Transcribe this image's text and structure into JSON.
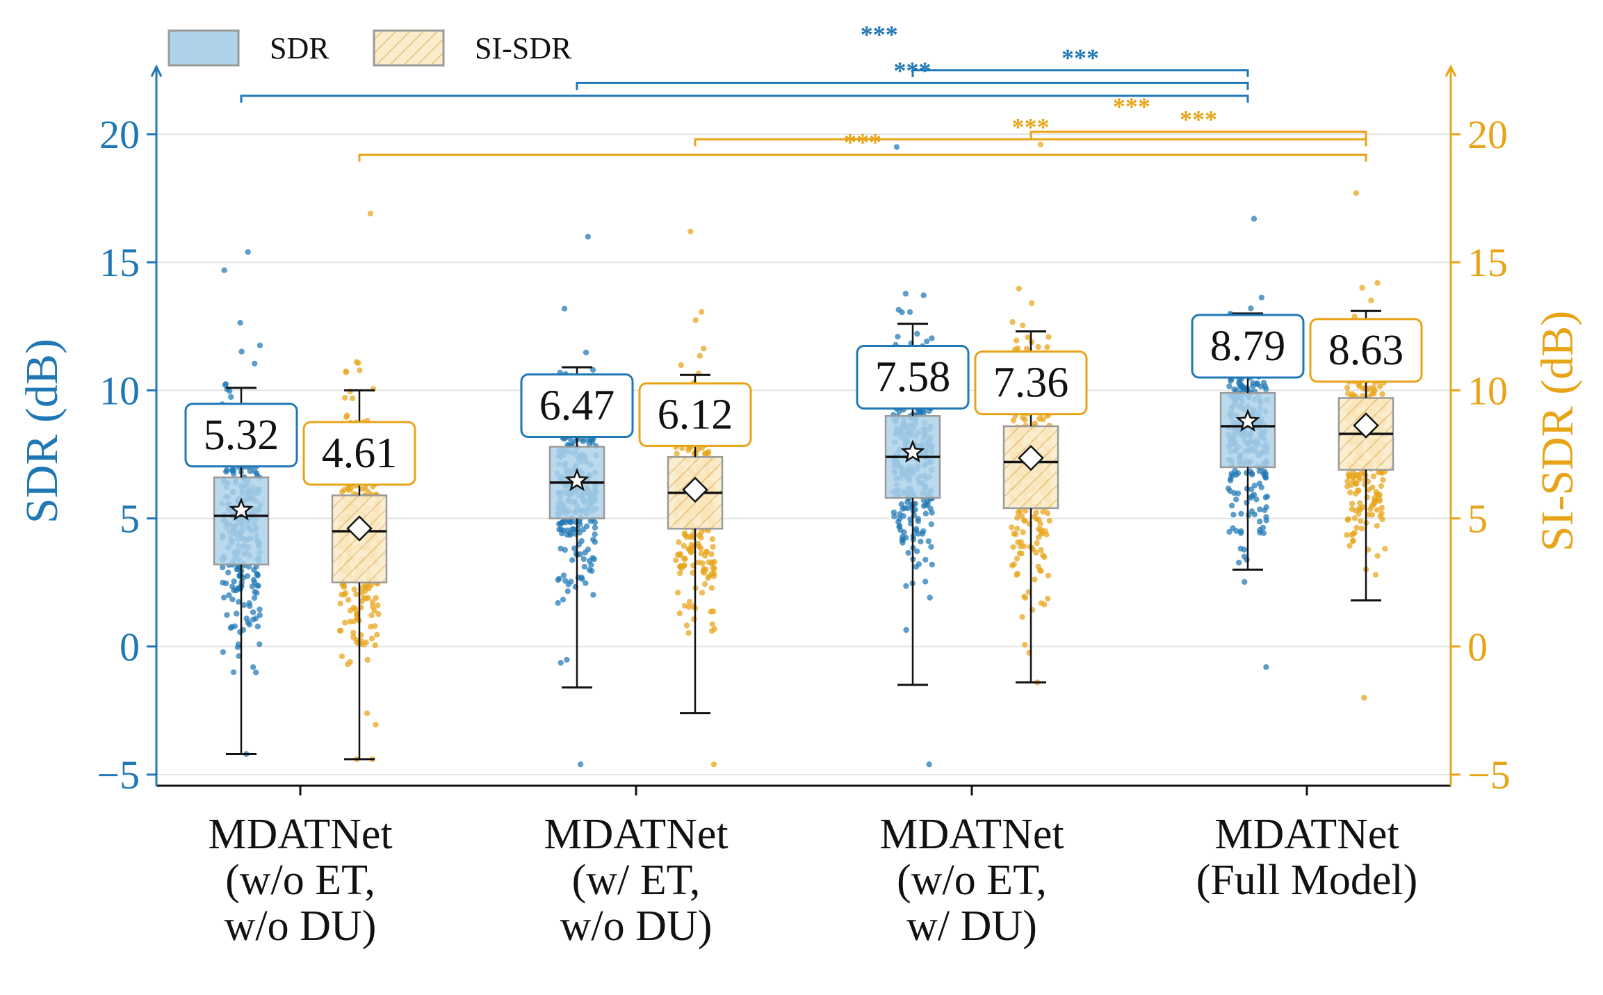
{
  "chart_data": {
    "type": "box",
    "title": "",
    "xlabel": "",
    "ylabel_left": "SDR (dB)",
    "ylabel_right": "SI-SDR (dB)",
    "ylim": [
      -5.5,
      22.5
    ],
    "yticks": [
      -5,
      0,
      5,
      10,
      15,
      20
    ],
    "ytick_labels": [
      "−5",
      "0",
      "5",
      "10",
      "15",
      "20"
    ],
    "grid": true,
    "legend_position": "top-left",
    "categories": [
      [
        "MDATNet",
        "(w/o ET,",
        "w/o DU)"
      ],
      [
        "MDATNet",
        "(w/ ET,",
        "w/o DU)"
      ],
      [
        "MDATNet",
        "(w/o ET,",
        "w/ DU)"
      ],
      [
        "MDATNet",
        "(Full Model)"
      ]
    ],
    "colors": {
      "sdr": "#1f77b4",
      "sdr_box": "#aed2ea",
      "sisdr": "#e8a417",
      "sisdr_box": "#fbeccb",
      "axis": "#111111",
      "grid": "#e3e3e3",
      "median": "#111111"
    },
    "series": [
      {
        "name": "SDR",
        "key": "sdr",
        "mean_marker": "star",
        "means": [
          5.32,
          6.47,
          7.58,
          8.79
        ],
        "mean_labels": [
          "5.32",
          "6.47",
          "7.58",
          "8.79"
        ],
        "medians": [
          5.1,
          6.4,
          7.4,
          8.6
        ],
        "q1": [
          3.2,
          5.0,
          5.8,
          7.0
        ],
        "q3": [
          6.6,
          7.8,
          9.0,
          9.9
        ],
        "whisker_low": [
          -4.2,
          -1.6,
          -1.5,
          3.0
        ],
        "whisker_high": [
          10.1,
          10.9,
          12.6,
          13.0
        ],
        "point_min": [
          -4.2,
          -4.6,
          -4.6,
          -0.8
        ],
        "point_max": [
          15.4,
          16.0,
          19.5,
          16.7
        ],
        "points_per_group": 300
      },
      {
        "name": "SI-SDR",
        "key": "sisdr",
        "mean_marker": "diamond",
        "means": [
          4.61,
          6.12,
          7.36,
          8.63
        ],
        "mean_labels": [
          "4.61",
          "6.12",
          "7.36",
          "8.63"
        ],
        "medians": [
          4.5,
          6.0,
          7.2,
          8.3
        ],
        "q1": [
          2.5,
          4.6,
          5.4,
          6.9
        ],
        "q3": [
          5.9,
          7.4,
          8.6,
          9.7
        ],
        "whisker_low": [
          -4.4,
          -2.6,
          -1.4,
          1.8
        ],
        "whisker_high": [
          10.0,
          10.6,
          12.3,
          13.1
        ],
        "point_min": [
          -4.4,
          -4.6,
          -1.4,
          -2.0
        ],
        "point_max": [
          16.9,
          16.2,
          19.6,
          17.7
        ],
        "points_per_group": 300
      }
    ],
    "significance": [
      {
        "series": "sdr",
        "from": 0,
        "to": 3,
        "y": 21.5,
        "label": ""
      },
      {
        "series": "sdr",
        "from": 1,
        "to": 3,
        "y": 22.0,
        "label": "***"
      },
      {
        "series": "sdr",
        "from": 2,
        "to": 3,
        "y": 22.5,
        "label": "***"
      },
      {
        "series": "sisdr",
        "from": 0,
        "to": 3,
        "y": 19.2,
        "label": "***"
      },
      {
        "series": "sisdr",
        "from": 1,
        "to": 3,
        "y": 19.8,
        "label": "***"
      },
      {
        "series": "sisdr",
        "from": 2,
        "to": 3,
        "y": 20.1,
        "label": "***"
      }
    ],
    "significance_labels_extra": [
      {
        "series": "sdr",
        "label": "***",
        "anchor_group": 1.9,
        "y": 23.4
      },
      {
        "series": "sisdr",
        "label": "***",
        "anchor_group": 2.3,
        "y": 20.6
      }
    ],
    "legend": [
      {
        "label": "SDR",
        "key": "sdr"
      },
      {
        "label": "SI-SDR",
        "key": "sisdr"
      }
    ]
  }
}
